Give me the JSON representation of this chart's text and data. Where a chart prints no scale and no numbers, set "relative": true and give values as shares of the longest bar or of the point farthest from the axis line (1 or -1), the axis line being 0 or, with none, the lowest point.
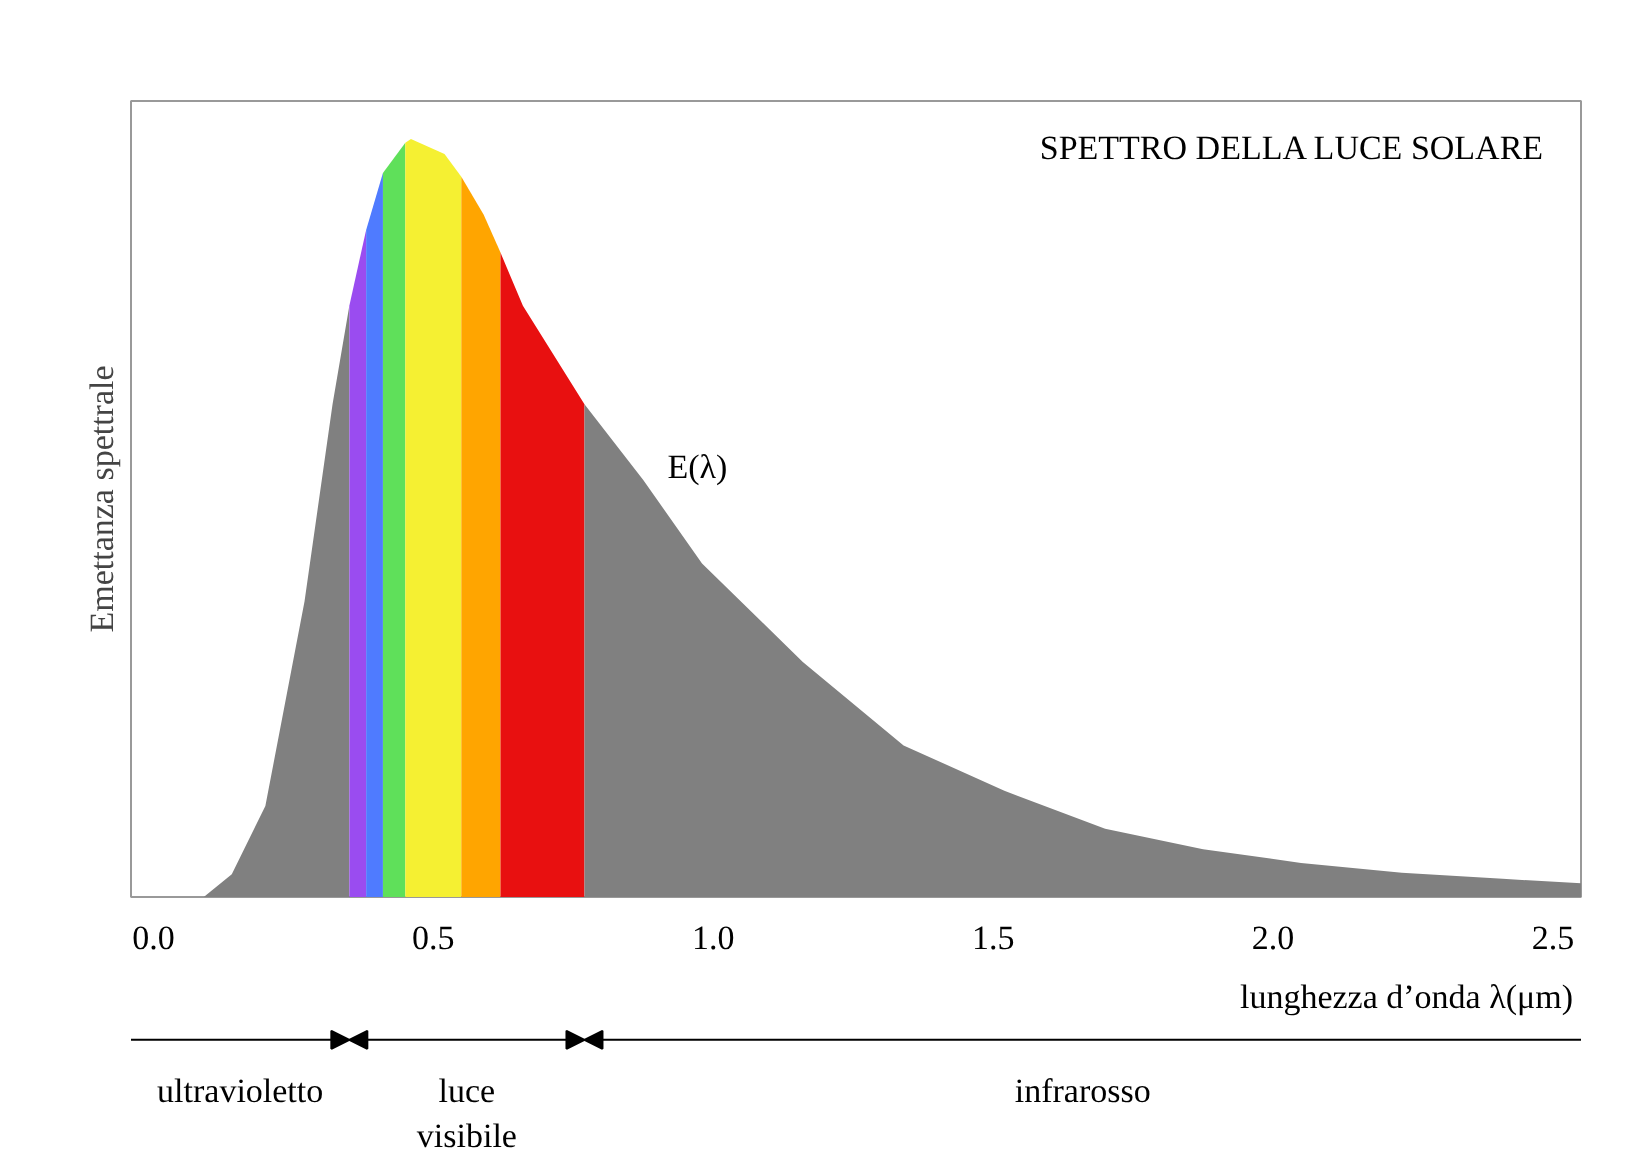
{
  "chart_data": {
    "type": "area",
    "title": "SPETTRO DELLA LUCE SOLARE",
    "xlabel": "lunghezza d’onda λ(μm)",
    "ylabel": "Emettanza spettrale",
    "relative": true,
    "xlim": [
      -0.04,
      2.55
    ],
    "xticks": [
      {
        "value": 0,
        "label": "0.0"
      },
      {
        "value": 0.5,
        "label": "0.5"
      },
      {
        "value": 1,
        "label": "1.0"
      },
      {
        "value": 1.5,
        "label": "1.5"
      },
      {
        "value": 2,
        "label": "2.0"
      },
      {
        "value": 2.5,
        "label": "2.5"
      }
    ],
    "series": [
      {
        "color": "#808080",
        "x": [
          0.09,
          0.14,
          0.2,
          0.27,
          0.32,
          0.35
        ],
        "values": [
          0,
          0.03,
          0.12,
          0.39,
          0.65,
          0.78
        ]
      },
      {
        "color": "#9a4cf0",
        "x": [
          0.35,
          0.38
        ],
        "values": [
          0.78,
          0.88
        ]
      },
      {
        "color": "#4f7bff",
        "x": [
          0.38,
          0.41
        ],
        "values": [
          0.88,
          0.955
        ]
      },
      {
        "color": "#5fe05a",
        "x": [
          0.41,
          0.45
        ],
        "values": [
          0.955,
          0.995
        ]
      },
      {
        "color": "#f5f032",
        "x": [
          0.45,
          0.46,
          0.52,
          0.55
        ],
        "values": [
          0.995,
          1,
          0.98,
          0.95
        ]
      },
      {
        "color": "#ffa500",
        "x": [
          0.55,
          0.59,
          0.62
        ],
        "values": [
          0.95,
          0.9,
          0.85
        ]
      },
      {
        "color": "#e81010",
        "x": [
          0.62,
          0.66,
          0.77
        ],
        "values": [
          0.85,
          0.78,
          0.65
        ]
      },
      {
        "color": "#808080",
        "x": [
          0.77,
          0.875,
          0.98,
          1.16,
          1.34,
          1.52,
          1.7,
          1.875,
          2.05,
          2.23,
          2.41,
          2.55
        ],
        "values": [
          0.65,
          0.55,
          0.44,
          0.31,
          0.2,
          0.14,
          0.09,
          0.063,
          0.045,
          0.032,
          0.024,
          0.018
        ]
      }
    ],
    "annotations": [
      "E(λ)",
      "ultravioletto",
      "luce\nvisibile",
      "infrarosso"
    ]
  }
}
